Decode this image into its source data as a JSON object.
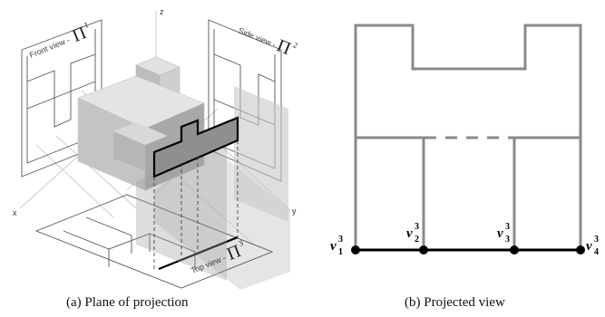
{
  "figure_a": {
    "caption": "(a) Plane of projection",
    "axes": {
      "x": "x",
      "y": "y",
      "z": "z"
    },
    "front_view": {
      "text": "Front view -",
      "symbol": "Π",
      "sup": "1"
    },
    "side_view": {
      "text": "Side view -",
      "symbol": "Π",
      "sup": "2"
    },
    "top_view": {
      "text": "Top view -",
      "symbol": "Π",
      "sup": "3"
    }
  },
  "figure_b": {
    "caption": "(b) Projected view",
    "vertices": [
      {
        "base": "v",
        "sup": "3",
        "sub": "1"
      },
      {
        "base": "v",
        "sup": "3",
        "sub": "2"
      },
      {
        "base": "v",
        "sup": "3",
        "sub": "3"
      },
      {
        "base": "v",
        "sup": "3",
        "sub": "4"
      }
    ]
  },
  "colors": {
    "outline": "#8a8a8a",
    "edge": "#000000",
    "light_face": "#d9d9d9",
    "mid_face": "#bdbdbd",
    "dark_face": "#a9a9a9"
  }
}
